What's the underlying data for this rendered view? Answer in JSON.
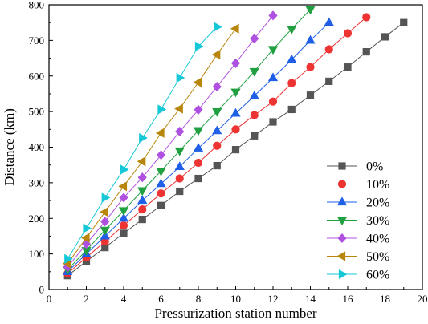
{
  "chart_data": {
    "type": "line",
    "title": "",
    "xlabel": "Pressurization station number",
    "ylabel": "Distance (km)",
    "xlim": [
      0,
      20
    ],
    "ylim": [
      0,
      800
    ],
    "xticks": [
      0,
      2,
      4,
      6,
      8,
      10,
      12,
      14,
      16,
      18,
      20
    ],
    "yticks": [
      0,
      100,
      200,
      300,
      400,
      500,
      600,
      700,
      800
    ],
    "grid": false,
    "legend_position": "right",
    "series": [
      {
        "name": "0%",
        "color": "#555555",
        "marker": "square",
        "x": [
          1,
          2,
          3,
          4,
          5,
          6,
          7,
          8,
          9,
          10,
          11,
          12,
          13,
          14,
          15,
          16,
          17,
          18,
          19
        ],
        "y": [
          39,
          79,
          118,
          158,
          197,
          236,
          276,
          312,
          348,
          393,
          432,
          471,
          506,
          546,
          585,
          625,
          668,
          710,
          750
        ]
      },
      {
        "name": "10%",
        "color": "#ee3333",
        "marker": "circle",
        "x": [
          1,
          2,
          3,
          4,
          5,
          6,
          7,
          8,
          9,
          10,
          11,
          12,
          13,
          14,
          15,
          16,
          17
        ],
        "y": [
          45,
          90,
          135,
          180,
          225,
          270,
          312,
          356,
          404,
          450,
          490,
          528,
          580,
          625,
          675,
          720,
          765
        ]
      },
      {
        "name": "20%",
        "color": "#1f5fe8",
        "marker": "triangle-up",
        "x": [
          1,
          2,
          3,
          4,
          5,
          6,
          7,
          8,
          9,
          10,
          11,
          12,
          13,
          14,
          15
        ],
        "y": [
          50,
          100,
          150,
          200,
          250,
          297,
          345,
          397,
          446,
          495,
          544,
          595,
          646,
          700,
          750
        ]
      },
      {
        "name": "30%",
        "color": "#20a040",
        "marker": "triangle-down",
        "x": [
          1,
          2,
          3,
          4,
          5,
          6,
          7,
          8,
          9,
          10,
          11,
          12,
          13,
          14
        ],
        "y": [
          56,
          110,
          167,
          222,
          278,
          333,
          390,
          447,
          500,
          555,
          613,
          675,
          732,
          787
        ]
      },
      {
        "name": "40%",
        "color": "#b050e0",
        "marker": "diamond",
        "x": [
          1,
          2,
          3,
          4,
          5,
          6,
          7,
          8,
          9,
          10,
          11,
          12
        ],
        "y": [
          63,
          128,
          191,
          258,
          315,
          378,
          444,
          505,
          570,
          636,
          705,
          770
        ]
      },
      {
        "name": "50%",
        "color": "#b8860b",
        "marker": "triangle-left",
        "x": [
          1,
          2,
          3,
          4,
          5,
          6,
          7,
          8,
          9,
          10
        ],
        "y": [
          73,
          145,
          218,
          290,
          360,
          440,
          508,
          582,
          660,
          733
        ]
      },
      {
        "name": "60%",
        "color": "#15c8d8",
        "marker": "triangle-right",
        "x": [
          1,
          2,
          3,
          4,
          5,
          6,
          7,
          8,
          9
        ],
        "y": [
          86,
          172,
          258,
          337,
          426,
          506,
          595,
          683,
          738
        ]
      }
    ]
  }
}
